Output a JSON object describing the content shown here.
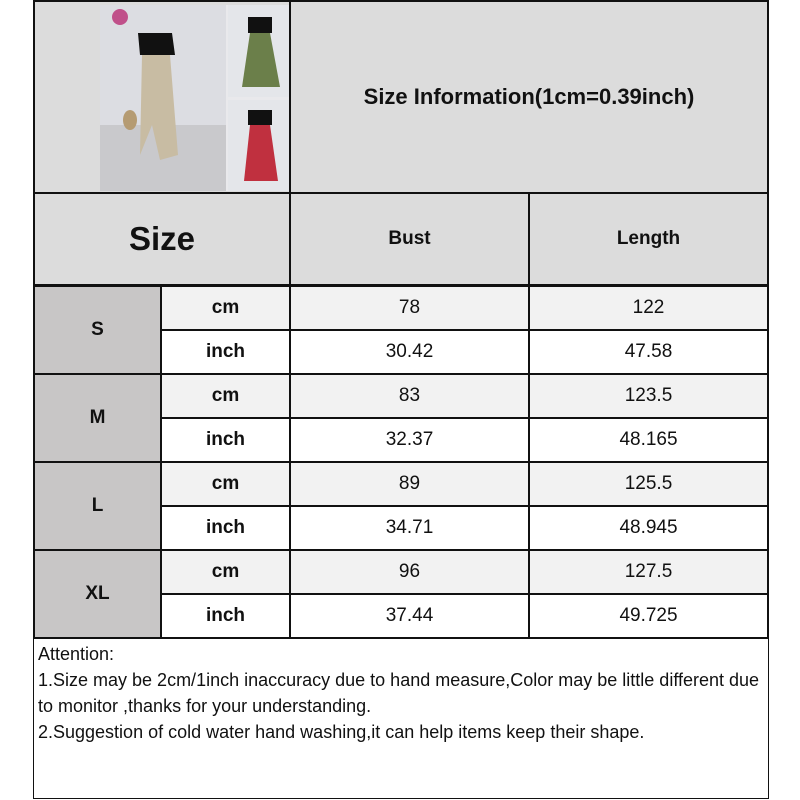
{
  "title": "Size Information(1cm=0.39inch)",
  "size_header": "Size",
  "columns": [
    "Bust",
    "Length"
  ],
  "rows": [
    {
      "size": "S",
      "cm": [
        "78",
        "122"
      ],
      "inch": [
        "30.42",
        "47.58"
      ]
    },
    {
      "size": "M",
      "cm": [
        "83",
        "123.5"
      ],
      "inch": [
        "32.37",
        "48.165"
      ]
    },
    {
      "size": "L",
      "cm": [
        "89",
        "125.5"
      ],
      "inch": [
        "34.71",
        "48.945"
      ]
    },
    {
      "size": "XL",
      "cm": [
        "96",
        "127.5"
      ],
      "inch": [
        "37.44",
        "49.725"
      ]
    }
  ],
  "units": {
    "cm": "cm",
    "inch": "inch"
  },
  "attention": {
    "heading": "Attention:",
    "line1": "1.Size may be 2cm/1inch inaccuracy due to hand measure,Color may be little different due to monitor ,thanks for your understanding.",
    "line2": "2.Suggestion of cold water hand washing,it can help items keep their shape."
  }
}
